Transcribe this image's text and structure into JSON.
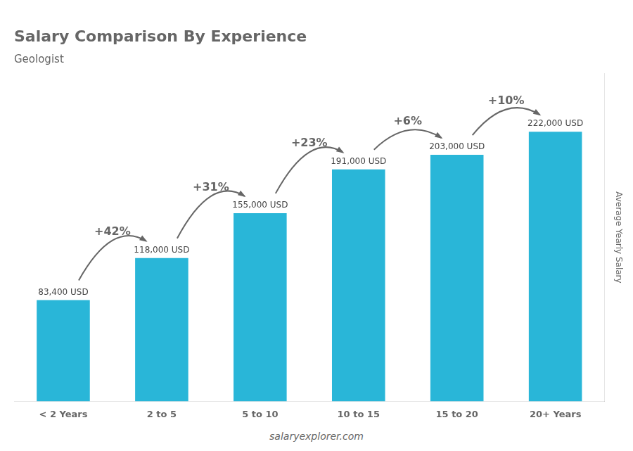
{
  "chart_data": {
    "type": "bar",
    "title": "Salary Comparison By Experience",
    "subtitle": "Geologist",
    "ylabel": "Average Yearly Salary",
    "footer": "salaryexplorer.com",
    "categories": [
      "< 2 Years",
      "2 to 5",
      "5 to 10",
      "10 to 15",
      "15 to 20",
      "20+ Years"
    ],
    "values": [
      83400,
      118000,
      155000,
      191000,
      203000,
      222000
    ],
    "value_labels": [
      "83,400 USD",
      "118,000 USD",
      "155,000 USD",
      "191,000 USD",
      "203,000 USD",
      "222,000 USD"
    ],
    "data_labels": true,
    "annotations": [
      "+42%",
      "+31%",
      "+23%",
      "+6%",
      "+10%"
    ],
    "color": "#29b6d8",
    "ylim": [
      0,
      270000
    ],
    "grid": false,
    "tick_labels": "x"
  }
}
